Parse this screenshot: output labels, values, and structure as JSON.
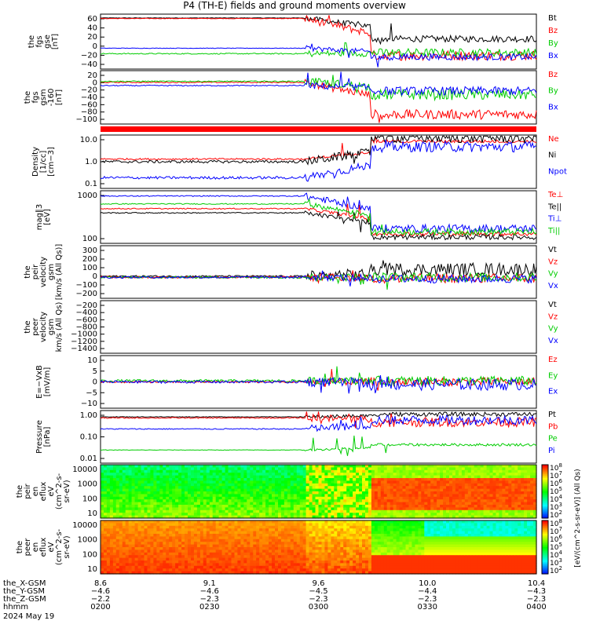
{
  "title": "P4 (TH-E) fields and ground moments overview",
  "colors": {
    "black": "#000000",
    "red": "#ff0000",
    "green": "#00cc00",
    "blue": "#0000ff"
  },
  "chart_data": [
    {
      "id": "fgs-gse",
      "type": "line",
      "ylabel": "the\nfgs\ngse\n[nT]",
      "yticks": [
        "60",
        "40",
        "20",
        "0",
        "−20",
        "−40"
      ],
      "ylim": [
        -50,
        70
      ],
      "series": [
        {
          "name": "Bt",
          "color": "#000000"
        },
        {
          "name": "Bz",
          "color": "#ff0000"
        },
        {
          "name": "By",
          "color": "#00cc00"
        },
        {
          "name": "Bx",
          "color": "#0000ff"
        }
      ]
    },
    {
      "id": "fgs-gsm",
      "type": "line",
      "ylabel": "the\nfgs\ngsm\n-160\n[nT]",
      "yticks": [
        "20",
        "0",
        "−20",
        "−40",
        "−60",
        "−80",
        "−100"
      ],
      "ylim": [
        -110,
        30
      ],
      "series": [
        {
          "name": "Bz",
          "color": "#ff0000"
        },
        {
          "name": "By",
          "color": "#00cc00"
        },
        {
          "name": "Bx",
          "color": "#0000ff"
        }
      ]
    },
    {
      "id": "density",
      "type": "line",
      "log": true,
      "ylabel": "Density\n[1/cc]\n[cm−3]",
      "yticks": [
        "10.0",
        "1.0",
        "0.1"
      ],
      "series": [
        {
          "name": "Ne",
          "color": "#ff0000"
        },
        {
          "name": "Ni",
          "color": "#000000"
        },
        {
          "name": "Npot",
          "color": "#0000ff"
        }
      ]
    },
    {
      "id": "temperature",
      "type": "line",
      "log": true,
      "ylabel": "mag∥3\n[eV]",
      "yticks": [
        "1000",
        "100"
      ],
      "series": [
        {
          "name": "Te⊥",
          "color": "#ff0000"
        },
        {
          "name": "Te||",
          "color": "#000000"
        },
        {
          "name": "Ti⊥",
          "color": "#0000ff"
        },
        {
          "name": "Ti||",
          "color": "#00cc00"
        }
      ]
    },
    {
      "id": "peir-velocity",
      "type": "line",
      "ylabel": "the\npeir\nvelocity\ngsm\n[km/s (All Qs)]",
      "yticks": [
        "300",
        "200",
        "100",
        "0",
        "−100",
        "−200"
      ],
      "ylim": [
        -250,
        300
      ],
      "series": [
        {
          "name": "Vt",
          "color": "#000000"
        },
        {
          "name": "Vz",
          "color": "#ff0000"
        },
        {
          "name": "Vy",
          "color": "#00cc00"
        },
        {
          "name": "Vx",
          "color": "#0000ff"
        }
      ]
    },
    {
      "id": "peer-velocity",
      "type": "line",
      "ylabel": "the\npeer\nvelocity\ngsm\nkm/s (All Qs)",
      "yticks": [
        "−200",
        "−400",
        "−600",
        "−800",
        "−1000",
        "−1200",
        "−1400"
      ],
      "series": [
        {
          "name": "Vt",
          "color": "#000000"
        },
        {
          "name": "Vz",
          "color": "#ff0000"
        },
        {
          "name": "Vy",
          "color": "#00cc00"
        },
        {
          "name": "Vx",
          "color": "#0000ff"
        }
      ]
    },
    {
      "id": "e-field",
      "type": "line",
      "ylabel": "E=−VxB\n[mV/m]",
      "yticks": [
        "10",
        "5",
        "0",
        "−5",
        "−10"
      ],
      "ylim": [
        -12,
        12
      ],
      "series": [
        {
          "name": "Ez",
          "color": "#ff0000"
        },
        {
          "name": "Ey",
          "color": "#00cc00"
        },
        {
          "name": "Ex",
          "color": "#0000ff"
        }
      ]
    },
    {
      "id": "pressure",
      "type": "line",
      "log": true,
      "ylabel": "Pressure\n[nPa]",
      "yticks": [
        "1.00",
        "0.10",
        "0.01"
      ],
      "series": [
        {
          "name": "Pt",
          "color": "#000000"
        },
        {
          "name": "Pb",
          "color": "#ff0000"
        },
        {
          "name": "Pe",
          "color": "#00cc00"
        },
        {
          "name": "Pi",
          "color": "#0000ff"
        }
      ]
    },
    {
      "id": "peir-eflux",
      "type": "heatmap",
      "ylabel": "the\npeir\nen\neflux\neV\n(cm^2-s-\nsr-eV)",
      "yticks": [
        "10000",
        "1000",
        "100",
        "10"
      ]
    },
    {
      "id": "peer-eflux",
      "type": "heatmap",
      "ylabel": "the\npeer\nen\neflux\neV\n(cm^2-s-\nsr-eV)",
      "yticks": [
        "10000",
        "1000",
        "100",
        "10"
      ]
    }
  ],
  "colorbar": {
    "ticks": [
      "10^8",
      "10^7",
      "10^6",
      "10^5",
      "10^4",
      "10^3",
      "10^2"
    ],
    "ticks_lower": [
      "10^8",
      "10^7",
      "10^6",
      "10^5",
      "10^4",
      "10^3",
      "10^2"
    ],
    "label": "[eV/(cm^2-s-sr-eV)] (All Qs)"
  },
  "xaxis": {
    "rows": [
      {
        "label": "the_X-GSM",
        "values": [
          "8.6",
          "9.1",
          "9.6",
          "10.0",
          "10.4"
        ]
      },
      {
        "label": "the_Y-GSM",
        "values": [
          "−4.6",
          "−4.6",
          "−4.5",
          "−4.4",
          "−4.3"
        ]
      },
      {
        "label": "the_Z-GSM",
        "values": [
          "−2.2",
          "−2.3",
          "−2.3",
          "−2.3",
          "−2.3"
        ]
      },
      {
        "label": "hhmm",
        "values": [
          "0200",
          "0230",
          "0300",
          "0330",
          "0400"
        ]
      }
    ],
    "date": "2024 May 19"
  }
}
